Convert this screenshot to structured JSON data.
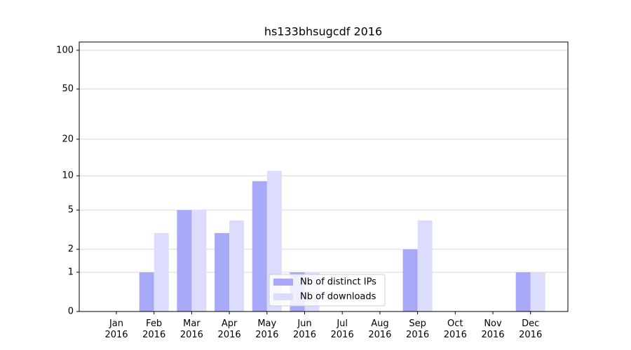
{
  "chart_data": {
    "type": "bar",
    "title": "hs133bhsugcdf 2016",
    "categories": [
      "Jan 2016",
      "Feb 2016",
      "Mar 2016",
      "Apr 2016",
      "May 2016",
      "Jun 2016",
      "Jul 2016",
      "Aug 2016",
      "Sep 2016",
      "Oct 2016",
      "Nov 2016",
      "Dec 2016"
    ],
    "series": [
      {
        "name": "Nb of distinct IPs",
        "color": "#a8a8f8",
        "values": [
          0,
          1,
          5,
          3,
          9,
          1,
          0,
          0,
          2,
          0,
          0,
          1
        ]
      },
      {
        "name": "Nb of downloads",
        "color": "#dcdcfc",
        "values": [
          0,
          3,
          5,
          4,
          11,
          1,
          0,
          0,
          4,
          0,
          0,
          1
        ]
      }
    ],
    "yscale": "log1p",
    "ylim": [
      0,
      116
    ],
    "yticks": [
      0,
      1,
      2,
      5,
      10,
      20,
      50,
      100
    ],
    "grid": true,
    "legend": "lower center"
  }
}
